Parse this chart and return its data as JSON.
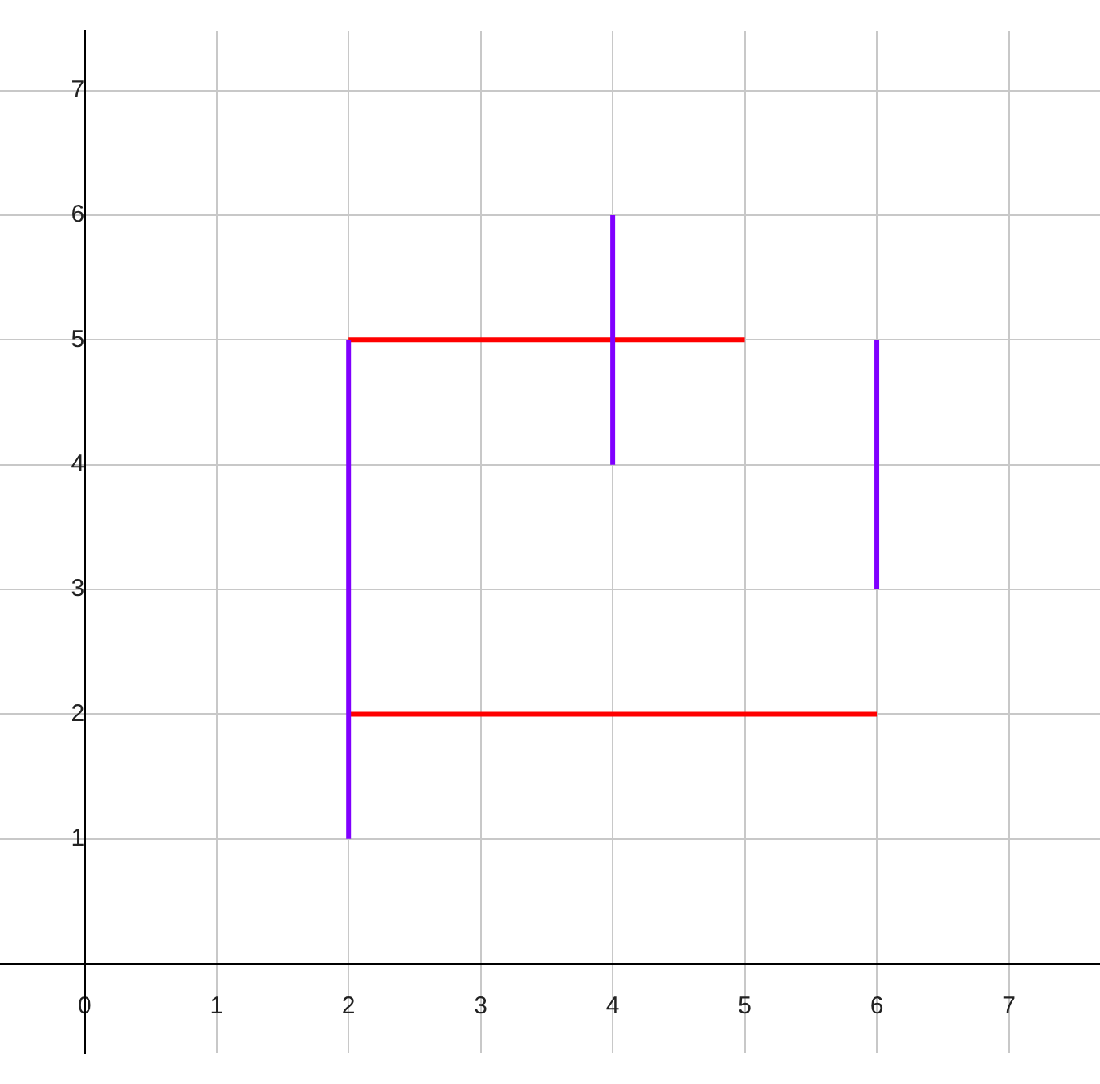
{
  "chart_data": {
    "type": "line",
    "xlim": [
      -0.64,
      7.69
    ],
    "ylim": [
      -0.72,
      7.48
    ],
    "xticks": [
      0,
      1,
      2,
      3,
      4,
      5,
      6,
      7
    ],
    "yticks": [
      {
        "value": 0,
        "label": null
      },
      1,
      2,
      3,
      4,
      5,
      6,
      7
    ],
    "grid": true,
    "legend": false,
    "marker": "none",
    "line_style": "solid",
    "series": [
      {
        "color": "#8000ff",
        "x": [
          2,
          2
        ],
        "values": [
          1,
          5
        ]
      },
      {
        "color": "#8000ff",
        "x": [
          4,
          4
        ],
        "values": [
          4,
          6
        ]
      },
      {
        "color": "#8000ff",
        "x": [
          6,
          6
        ],
        "values": [
          3,
          5
        ]
      },
      {
        "color": "#ff0000",
        "x": [
          2,
          5
        ],
        "values": [
          5,
          5
        ]
      },
      {
        "color": "#ff0000",
        "x": [
          2,
          6
        ],
        "values": [
          2,
          2
        ]
      }
    ]
  }
}
